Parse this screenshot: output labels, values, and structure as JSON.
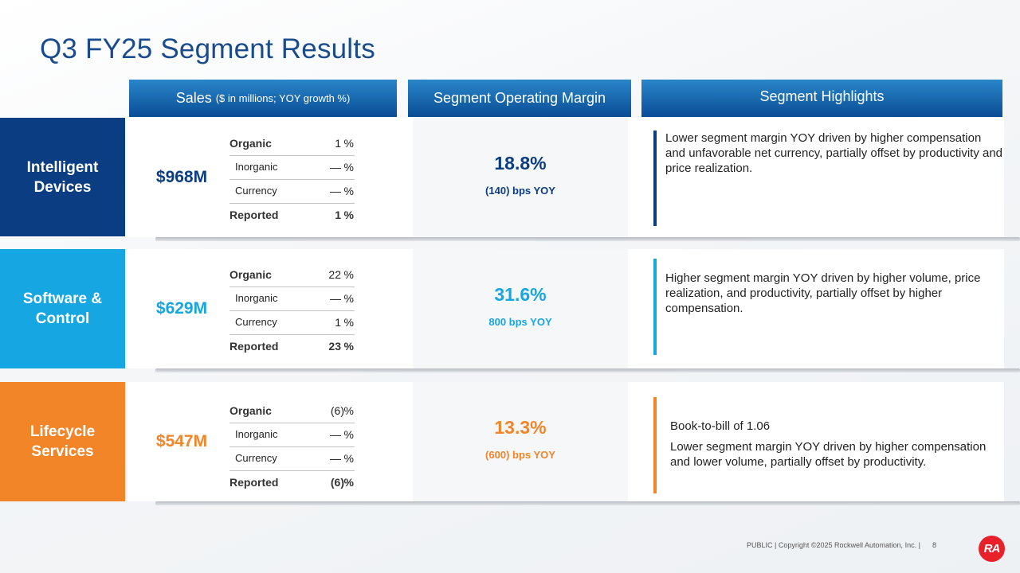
{
  "title": "Q3 FY25 Segment Results",
  "headers": {
    "sales": "Sales",
    "sales_sub": "($ in millions; YOY growth %)",
    "margin": "Segment Operating Margin",
    "highlights": "Segment Highlights"
  },
  "colors": {
    "intelligent_devices": "#0b3d82",
    "software_control": "#16a6e2",
    "lifecycle_services": "#f18528"
  },
  "segments": [
    {
      "name": "Intelligent Devices",
      "sales": "$968M",
      "growth": [
        {
          "label": "Organic",
          "value": "1",
          "unit": "%"
        },
        {
          "label": "Inorganic",
          "value": "—",
          "unit": "%"
        },
        {
          "label": "Currency",
          "value": "—",
          "unit": "%"
        },
        {
          "label": "Reported",
          "value": "1",
          "unit": "%"
        }
      ],
      "margin": "18.8%",
      "margin_change": "(140) bps YOY",
      "highlights": [
        "Lower segment margin YOY driven by higher compensation and unfavorable net currency, partially offset by productivity and price realization."
      ]
    },
    {
      "name": "Software & Control",
      "sales": "$629M",
      "growth": [
        {
          "label": "Organic",
          "value": "22",
          "unit": "%"
        },
        {
          "label": "Inorganic",
          "value": "—",
          "unit": "%"
        },
        {
          "label": "Currency",
          "value": "1",
          "unit": "%"
        },
        {
          "label": "Reported",
          "value": "23",
          "unit": "%"
        }
      ],
      "margin": "31.6%",
      "margin_change": "800 bps YOY",
      "highlights": [
        "Higher segment margin YOY driven by higher volume, price realization, and productivity, partially offset by higher compensation."
      ]
    },
    {
      "name": "Lifecycle Services",
      "sales": "$547M",
      "growth": [
        {
          "label": "Organic",
          "value": "(6)",
          "unit": "%"
        },
        {
          "label": "Inorganic",
          "value": "—",
          "unit": "%"
        },
        {
          "label": "Currency",
          "value": "—",
          "unit": "%"
        },
        {
          "label": "Reported",
          "value": "(6)",
          "unit": "%"
        }
      ],
      "margin": "13.3%",
      "margin_change": "(600) bps YOY",
      "highlights": [
        "Book-to-bill of 1.06",
        "Lower segment margin YOY driven by higher compensation and lower volume, partially offset by productivity."
      ]
    }
  ],
  "footer": {
    "text": "PUBLIC | Copyright ©2025 Rockwell Automation, Inc. |",
    "page": "8",
    "logo_text": "RA"
  }
}
